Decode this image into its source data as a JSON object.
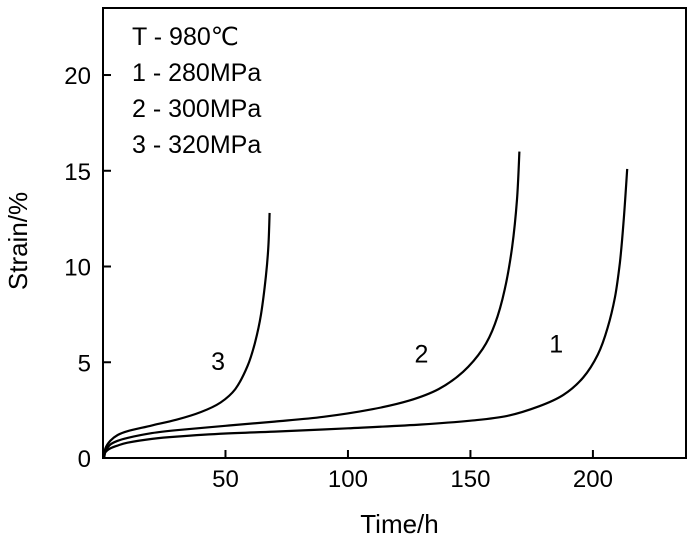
{
  "chart_data": {
    "type": "line",
    "title": "",
    "xlabel": "Time/h",
    "ylabel": "Strain/%",
    "xlim": [
      0,
      238
    ],
    "ylim": [
      0,
      23.5
    ],
    "xticks": [
      50,
      100,
      150,
      200
    ],
    "yticks": [
      0,
      5,
      10,
      15,
      20
    ],
    "grid": false,
    "legend": {
      "placement": "top-left",
      "entries": [
        "T - 980℃",
        "1 - 280MPa",
        "2 - 300MPa",
        "3 - 320MPa"
      ]
    },
    "series": [
      {
        "name": "1",
        "label": "1",
        "stress": "280MPa",
        "points": [
          [
            0.5,
            0
          ],
          [
            1,
            0.3
          ],
          [
            3,
            0.5
          ],
          [
            6,
            0.65
          ],
          [
            10,
            0.8
          ],
          [
            20,
            1.0
          ],
          [
            30,
            1.12
          ],
          [
            50,
            1.28
          ],
          [
            70,
            1.38
          ],
          [
            100,
            1.55
          ],
          [
            130,
            1.75
          ],
          [
            150,
            1.95
          ],
          [
            165,
            2.2
          ],
          [
            178,
            2.7
          ],
          [
            188,
            3.3
          ],
          [
            196,
            4.2
          ],
          [
            202,
            5.4
          ],
          [
            206,
            6.8
          ],
          [
            209,
            8.4
          ],
          [
            211,
            10.2
          ],
          [
            212.5,
            12.3
          ],
          [
            214,
            15.1
          ]
        ],
        "label_at": [
          185,
          5.5
        ]
      },
      {
        "name": "2",
        "label": "2",
        "stress": "300MPa",
        "points": [
          [
            0.5,
            0
          ],
          [
            1,
            0.35
          ],
          [
            3,
            0.7
          ],
          [
            6,
            0.9
          ],
          [
            10,
            1.05
          ],
          [
            20,
            1.3
          ],
          [
            30,
            1.45
          ],
          [
            50,
            1.68
          ],
          [
            70,
            1.9
          ],
          [
            90,
            2.15
          ],
          [
            110,
            2.55
          ],
          [
            125,
            3.0
          ],
          [
            137,
            3.6
          ],
          [
            147,
            4.5
          ],
          [
            155,
            5.7
          ],
          [
            160,
            7.0
          ],
          [
            164,
            8.8
          ],
          [
            167,
            11.0
          ],
          [
            169,
            13.5
          ],
          [
            170,
            16.0
          ]
        ],
        "label_at": [
          130,
          5.0
        ]
      },
      {
        "name": "3",
        "label": "3",
        "stress": "320MPa",
        "points": [
          [
            0.5,
            0
          ],
          [
            1,
            0.5
          ],
          [
            3,
            0.9
          ],
          [
            6,
            1.2
          ],
          [
            10,
            1.4
          ],
          [
            20,
            1.7
          ],
          [
            30,
            2.0
          ],
          [
            40,
            2.4
          ],
          [
            48,
            2.9
          ],
          [
            54,
            3.6
          ],
          [
            59,
            4.8
          ],
          [
            62,
            6.0
          ],
          [
            64.5,
            7.5
          ],
          [
            66.5,
            9.5
          ],
          [
            67.5,
            11.0
          ],
          [
            68,
            12.8
          ]
        ],
        "label_at": [
          47,
          4.6
        ]
      }
    ]
  }
}
